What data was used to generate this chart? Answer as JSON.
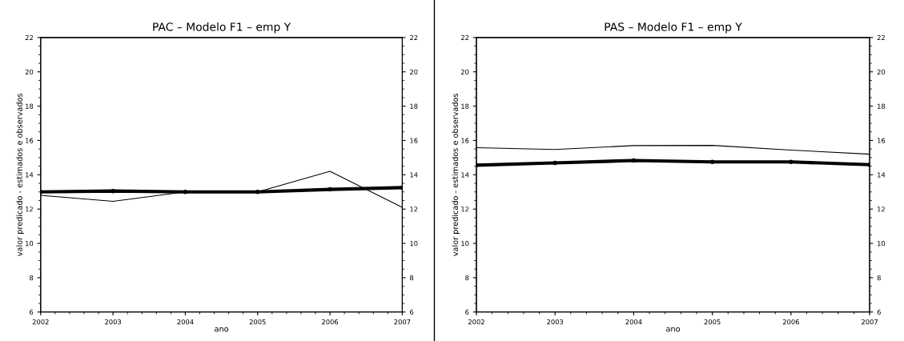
{
  "chart_data": [
    {
      "type": "line",
      "title": "PAC – Modelo F1 – emp Y",
      "xlabel": "ano",
      "ylabel": "valor predicado - estimados e observados",
      "x": [
        2002,
        2003,
        2004,
        2005,
        2006,
        2007
      ],
      "series": [
        {
          "color": "#000000",
          "marker": "circle",
          "values": [
            13.0,
            13.05,
            13.0,
            13.0,
            13.15,
            13.25
          ]
        },
        {
          "color": "#000000",
          "marker": "none",
          "values": [
            12.8,
            12.45,
            13.0,
            13.0,
            14.2,
            12.1
          ]
        }
      ],
      "xlim": [
        2002,
        2007
      ],
      "xticks": [
        2002,
        2003,
        2004,
        2005,
        2006,
        2007
      ],
      "ylim": [
        6,
        22
      ],
      "yticks": [
        6,
        8,
        10,
        12,
        14,
        16,
        18,
        20,
        22
      ],
      "y2lim": [
        6,
        22
      ],
      "y2ticks": [
        6,
        8,
        10,
        12,
        14,
        16,
        18,
        20,
        22
      ],
      "grid": false,
      "line_style": "solid"
    },
    {
      "type": "line",
      "title": "PAS – Modelo F1 – emp Y",
      "xlabel": "ano",
      "ylabel": "valor predicado - estimados e observados",
      "x": [
        2002,
        2003,
        2004,
        2005,
        2006,
        2007
      ],
      "series": [
        {
          "color": "#000000",
          "marker": "circle",
          "values": [
            14.56,
            14.69,
            14.83,
            14.75,
            14.75,
            14.59
          ]
        },
        {
          "color": "#000000",
          "marker": "none",
          "values": [
            15.58,
            15.47,
            15.7,
            15.71,
            15.44,
            15.2
          ]
        }
      ],
      "xlim": [
        2002,
        2007
      ],
      "xticks": [
        2002,
        2003,
        2004,
        2005,
        2006,
        2007
      ],
      "ylim": [
        6,
        22
      ],
      "yticks": [
        6,
        8,
        10,
        12,
        14,
        16,
        18,
        20,
        22
      ],
      "y2lim": [
        6,
        22
      ],
      "y2ticks": [
        6,
        8,
        10,
        12,
        14,
        16,
        18,
        20,
        22
      ],
      "grid": false,
      "line_style": "solid"
    }
  ]
}
